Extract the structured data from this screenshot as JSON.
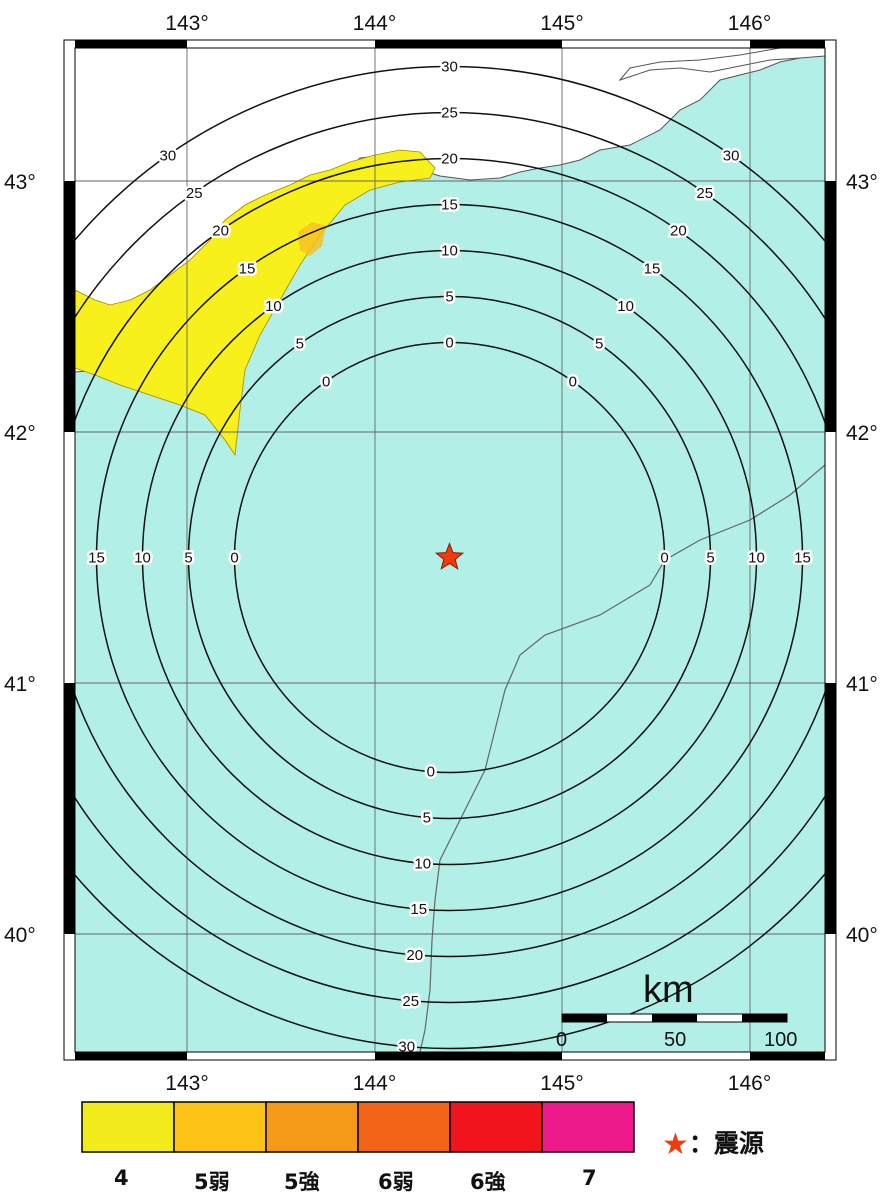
{
  "map": {
    "lon_ticks": [
      {
        "value": 143,
        "label": "143°"
      },
      {
        "value": 144,
        "label": "144°"
      },
      {
        "value": 145,
        "label": "145°"
      },
      {
        "value": 146,
        "label": "146°"
      }
    ],
    "lat_ticks": [
      {
        "value": 43,
        "label": "43°"
      },
      {
        "value": 42,
        "label": "42°"
      },
      {
        "value": 41,
        "label": "41°"
      },
      {
        "value": 40,
        "label": "40°"
      }
    ],
    "lon_range": [
      142.4,
      146.4
    ],
    "lat_range": [
      39.5,
      43.5
    ],
    "colors": {
      "sea": "#b1efe7",
      "land": "#ffffff",
      "intensity_4": "#f8f01a",
      "contour": "#111111",
      "grid": "#666666"
    },
    "epicenter": {
      "lon": 144.4,
      "lat": 41.5
    },
    "contours": [
      {
        "value": 0,
        "label": "0"
      },
      {
        "value": 5,
        "label": "5"
      },
      {
        "value": 10,
        "label": "10"
      },
      {
        "value": 15,
        "label": "15"
      },
      {
        "value": 20,
        "label": "20"
      },
      {
        "value": 25,
        "label": "25"
      },
      {
        "value": 30,
        "label": "30"
      }
    ]
  },
  "scale_bar": {
    "unit": "km",
    "ticks": [
      "0",
      "50",
      "100"
    ]
  },
  "legend": {
    "intensity": [
      {
        "label": "4",
        "color": "#f2ec1c"
      },
      {
        "label": "5弱",
        "color": "#fcc214"
      },
      {
        "label": "5強",
        "color": "#f59a18"
      },
      {
        "label": "6弱",
        "color": "#f46418"
      },
      {
        "label": "6強",
        "color": "#f2141c"
      },
      {
        "label": "7",
        "color": "#ec1a8a"
      }
    ],
    "epicenter_label": "：震源"
  }
}
